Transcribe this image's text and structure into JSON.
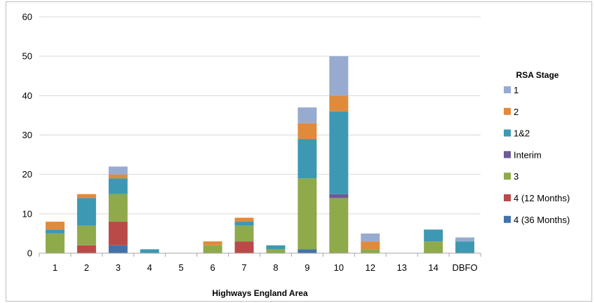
{
  "chart_data": {
    "type": "bar",
    "stacked": true,
    "title": "",
    "xlabel": "Highways England Area",
    "ylabel": "",
    "ylim": [
      0,
      60
    ],
    "yticks": [
      0,
      10,
      20,
      30,
      40,
      50,
      60
    ],
    "grid": "horizontal",
    "legend_title": "RSA Stage",
    "legend_position": "right",
    "categories": [
      "1",
      "2",
      "3",
      "4",
      "5",
      "6",
      "7",
      "8",
      "9",
      "10",
      "12",
      "13",
      "14",
      "DBFO"
    ],
    "series": [
      {
        "name": "4 (36 Months)",
        "color": "#4472a8",
        "values": [
          0,
          0,
          2,
          0,
          0,
          0,
          0,
          0,
          1,
          0,
          0,
          0,
          0,
          0
        ]
      },
      {
        "name": "4 (12 Months)",
        "color": "#b94a48",
        "values": [
          0,
          2,
          6,
          0,
          0,
          0,
          3,
          0,
          0,
          0,
          0,
          0,
          0,
          0
        ]
      },
      {
        "name": "3",
        "color": "#8faa4b",
        "values": [
          5,
          5,
          7,
          0,
          0,
          2,
          4,
          1,
          18,
          14,
          1,
          0,
          3,
          0
        ]
      },
      {
        "name": "Interim",
        "color": "#6e5a96",
        "values": [
          0,
          0,
          0,
          0,
          0,
          0,
          0,
          0,
          0,
          1,
          0,
          0,
          0,
          0
        ]
      },
      {
        "name": "1&2",
        "color": "#3d98b3",
        "values": [
          1,
          7,
          4,
          1,
          0,
          0,
          1,
          1,
          10,
          21,
          0,
          0,
          3,
          3
        ]
      },
      {
        "name": "2",
        "color": "#e08a3c",
        "values": [
          2,
          1,
          1,
          0,
          0,
          1,
          1,
          0,
          4,
          4,
          2,
          0,
          0,
          0
        ]
      },
      {
        "name": "1",
        "color": "#97abd0",
        "values": [
          0,
          0,
          2,
          0,
          0,
          0,
          0,
          0,
          4,
          10,
          2,
          0,
          0,
          1
        ]
      }
    ]
  }
}
